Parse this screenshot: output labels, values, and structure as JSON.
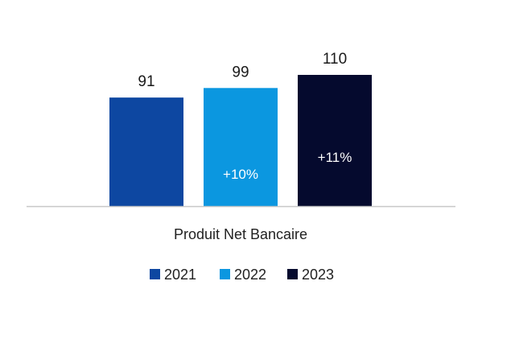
{
  "chart_data": {
    "type": "bar",
    "categories": [
      "Produit Net Bancaire"
    ],
    "series": [
      {
        "name": "2021",
        "values": [
          91
        ],
        "color": "#0d47a1",
        "annotation": ""
      },
      {
        "name": "2022",
        "values": [
          99
        ],
        "color": "#0b97e0",
        "annotation": "+10%"
      },
      {
        "name": "2023",
        "values": [
          110
        ],
        "color": "#050a2e",
        "annotation": "+11%"
      }
    ],
    "title": "",
    "xlabel": "",
    "ylabel": "",
    "ylim": [
      0,
      110
    ],
    "grid": false,
    "legend": "bottom-center",
    "value_labels": [
      "91",
      "99",
      "110"
    ],
    "axis_color": "#c8c8c8"
  }
}
